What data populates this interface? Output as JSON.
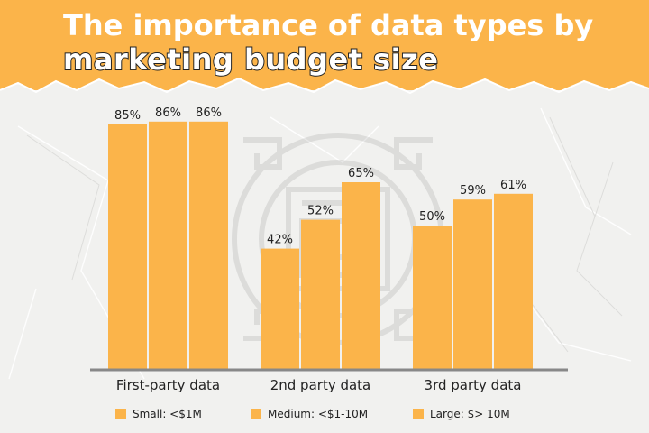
{
  "title": {
    "line1": "The importance of data types by",
    "line2": "marketing budget size"
  },
  "colors": {
    "accent": "#fbb44a",
    "bar": "#fbb44a",
    "text": "#222222",
    "baseline": "#888888"
  },
  "chart_data": {
    "type": "bar",
    "categories": [
      "First-party data",
      "2nd party data",
      "3rd party data"
    ],
    "series": [
      {
        "name": "Small: <$1M",
        "values": [
          85,
          42,
          50
        ]
      },
      {
        "name": "Medium: <$1-10M",
        "values": [
          86,
          52,
          59
        ]
      },
      {
        "name": "Large: $> 10M",
        "values": [
          86,
          65,
          61
        ]
      }
    ],
    "value_suffix": "%",
    "ylim": [
      0,
      100
    ],
    "grid": false,
    "legend_position": "bottom"
  }
}
